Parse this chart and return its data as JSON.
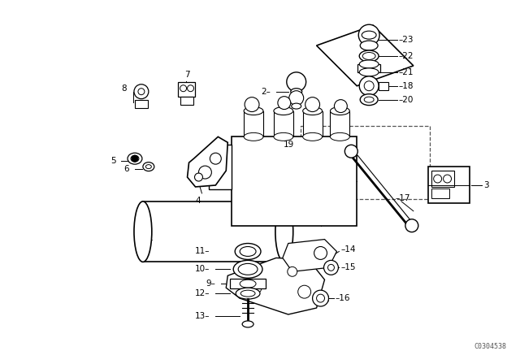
{
  "bg_color": "#ffffff",
  "line_color": "#000000",
  "fig_width": 6.4,
  "fig_height": 4.48,
  "watermark": "C0304538"
}
